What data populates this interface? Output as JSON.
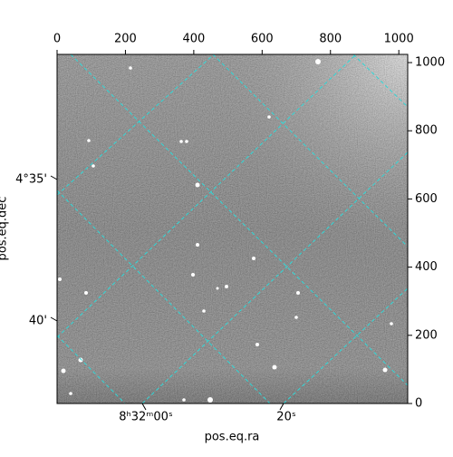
{
  "chart_data": {
    "type": "image",
    "xlabel": "pos.eq.ra",
    "ylabel": "pos.eq.dec",
    "xlim": [
      0,
      1026
    ],
    "ylim": [
      0,
      1024
    ],
    "xticks": [
      0,
      200,
      400,
      600,
      800,
      1000
    ],
    "yticks": [
      0,
      200,
      400,
      600,
      800,
      1000
    ],
    "ra_ticks": [
      "8ʰ32ᵐ00ˢ",
      "20ˢ"
    ],
    "dec_ticks": [
      "4°35'",
      "40'"
    ]
  }
}
